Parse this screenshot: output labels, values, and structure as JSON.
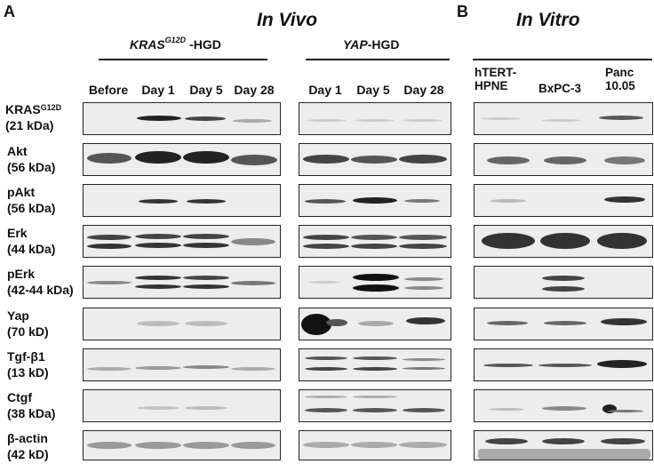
{
  "panels": {
    "a": "A",
    "b": "B"
  },
  "titles": {
    "in_vivo": "In Vivo",
    "in_vitro": "In Vitro"
  },
  "groups": {
    "kras": {
      "gene": "KRAS",
      "sup": "G12D",
      "suffix": " -HGD"
    },
    "yap": {
      "gene": "YAP",
      "suffix": "-HGD"
    }
  },
  "lanes": {
    "kras": [
      "Before",
      "Day 1",
      "Day 5",
      "Day 28"
    ],
    "yap": [
      "Day 1",
      "Day 5",
      "Day 28"
    ],
    "vitro": [
      {
        "line1": "hTERT-",
        "line2": "HPNE"
      },
      {
        "line1": "BxPC-3",
        "line2": ""
      },
      {
        "line1": "Panc",
        "line2": "10.05"
      }
    ]
  },
  "rows": [
    {
      "name": "KRAS",
      "sup": "G12D",
      "size": "(21 kDa)"
    },
    {
      "name": "Akt",
      "sup": "",
      "size": "(56 kDa)"
    },
    {
      "name": "pAkt",
      "sup": "",
      "size": "(56 kDa)"
    },
    {
      "name": "Erk",
      "sup": "",
      "size": "(44 kDa)"
    },
    {
      "name": "pErk",
      "sup": "",
      "size": "(42-44 kDa)"
    },
    {
      "name": "Yap",
      "sup": "",
      "size": "(70 kD)"
    },
    {
      "name": "Tgf-β1",
      "sup": "",
      "size": "(13 kD)"
    },
    {
      "name": "Ctgf",
      "sup": "",
      "size": "(38 kDa)"
    },
    {
      "name": "β-actin",
      "sup": "",
      "size": "(42 kD)"
    }
  ]
}
